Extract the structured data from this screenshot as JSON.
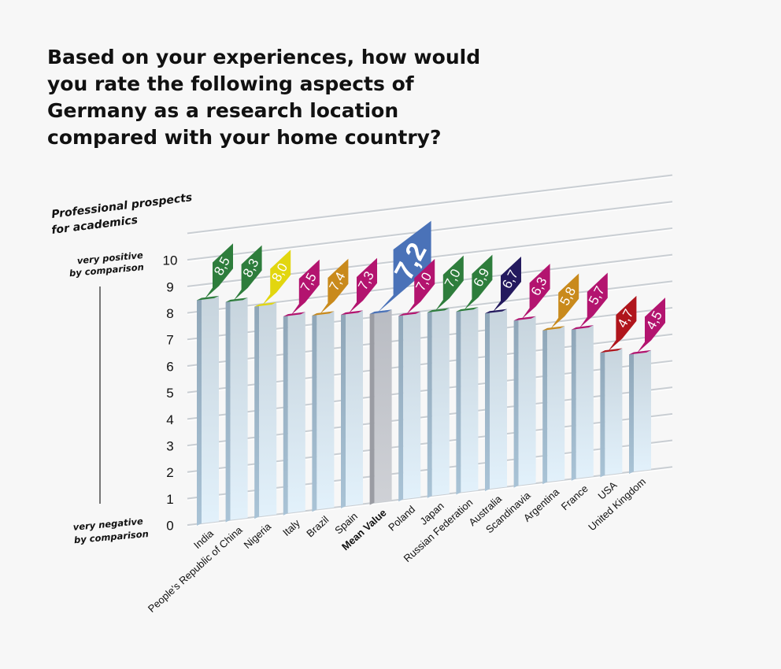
{
  "question": "Based on your experiences, how would you rate the following aspects of Germany as a research location compared with your home country?",
  "chart_data": {
    "type": "bar",
    "title": "Professional prospects for academics",
    "title_lines": [
      "Professional prospects",
      "for academics"
    ],
    "scale_top_label": [
      "very positive",
      "by comparison"
    ],
    "scale_bottom_label": [
      "very negative",
      "by comparison"
    ],
    "ylim": [
      0,
      10
    ],
    "yticks": [
      "0",
      "1",
      "2",
      "3",
      "4",
      "5",
      "6",
      "7",
      "8",
      "9",
      "10"
    ],
    "categories": [
      "India",
      "People's Republic of China",
      "Nigeria",
      "Italy",
      "Brazil",
      "Spain",
      "Mean Value",
      "Poland",
      "Japan",
      "Russian Federation",
      "Australia",
      "Scandinavia",
      "Argentina",
      "France",
      "USA",
      "United Kingdom"
    ],
    "values": [
      8.5,
      8.3,
      8.0,
      7.5,
      7.4,
      7.3,
      7.2,
      7.0,
      7.0,
      6.9,
      6.7,
      6.3,
      5.8,
      5.7,
      4.7,
      4.5
    ],
    "value_labels": [
      "8,5",
      "8,3",
      "8,0",
      "7,5",
      "7,4",
      "7,3",
      "7,2",
      "7,0",
      "7,0",
      "6,9",
      "6,7",
      "6,3",
      "5,8",
      "5,7",
      "4,7",
      "4,5"
    ],
    "label_colors": [
      "#2e7d3c",
      "#2e7d3c",
      "#e2d60f",
      "#b3146f",
      "#c98a1c",
      "#b3146f",
      "#4a72b8",
      "#b3146f",
      "#2e7d3c",
      "#2e7d3c",
      "#241a5e",
      "#b3146f",
      "#c98a1c",
      "#b3146f",
      "#b0151c",
      "#b3146f"
    ],
    "highlight": "Mean Value",
    "grid": true,
    "legend": "none"
  }
}
